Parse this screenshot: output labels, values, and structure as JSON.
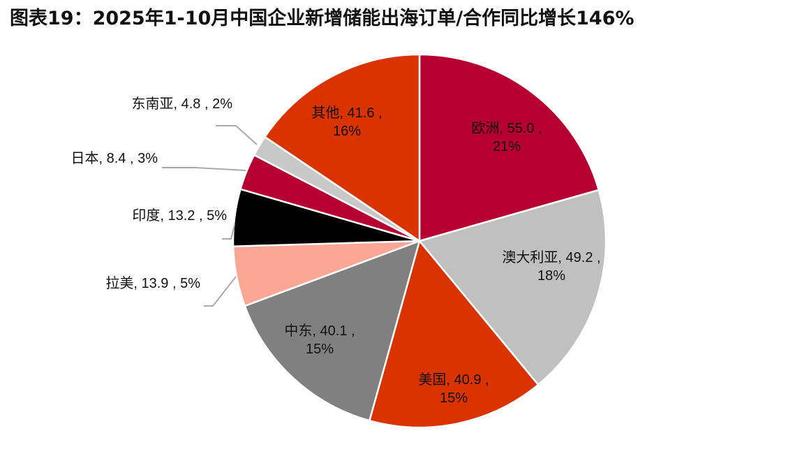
{
  "chart_data": {
    "type": "pie",
    "title": "图表19：2025年1-10月中国企业新增储能出海订单/合作同比增长146%",
    "slices": [
      {
        "name": "欧洲",
        "value": 55.0,
        "percent": "21%",
        "color": "#b70032",
        "label": "欧洲, 55.0 , 21%"
      },
      {
        "name": "澳大利亚",
        "value": 49.2,
        "percent": "18%",
        "color": "#c0c0c0",
        "label": "澳大利亚, 49.2 , 18%"
      },
      {
        "name": "美国",
        "value": 40.9,
        "percent": "15%",
        "color": "#d93300",
        "label": "美国, 40.9 , 15%"
      },
      {
        "name": "中东",
        "value": 40.1,
        "percent": "15%",
        "color": "#808080",
        "label": "中东, 40.1 , 15%"
      },
      {
        "name": "拉美",
        "value": 13.9,
        "percent": "5%",
        "color": "#fba795",
        "label": "拉美, 13.9 , 5%"
      },
      {
        "name": "印度",
        "value": 13.2,
        "percent": "5%",
        "color": "#000000",
        "label": "印度, 13.2 , 5%"
      },
      {
        "name": "日本",
        "value": 8.4,
        "percent": "3%",
        "color": "#b70032",
        "label": "日本, 8.4 , 3%"
      },
      {
        "name": "东南亚",
        "value": 4.8,
        "percent": "2%",
        "color": "#c8c8c8",
        "label": "东南亚, 4.8 , 2%"
      },
      {
        "name": "其他",
        "value": 41.6,
        "percent": "16%",
        "color": "#d93300",
        "label": "其他, 41.6 , 16%"
      }
    ]
  }
}
